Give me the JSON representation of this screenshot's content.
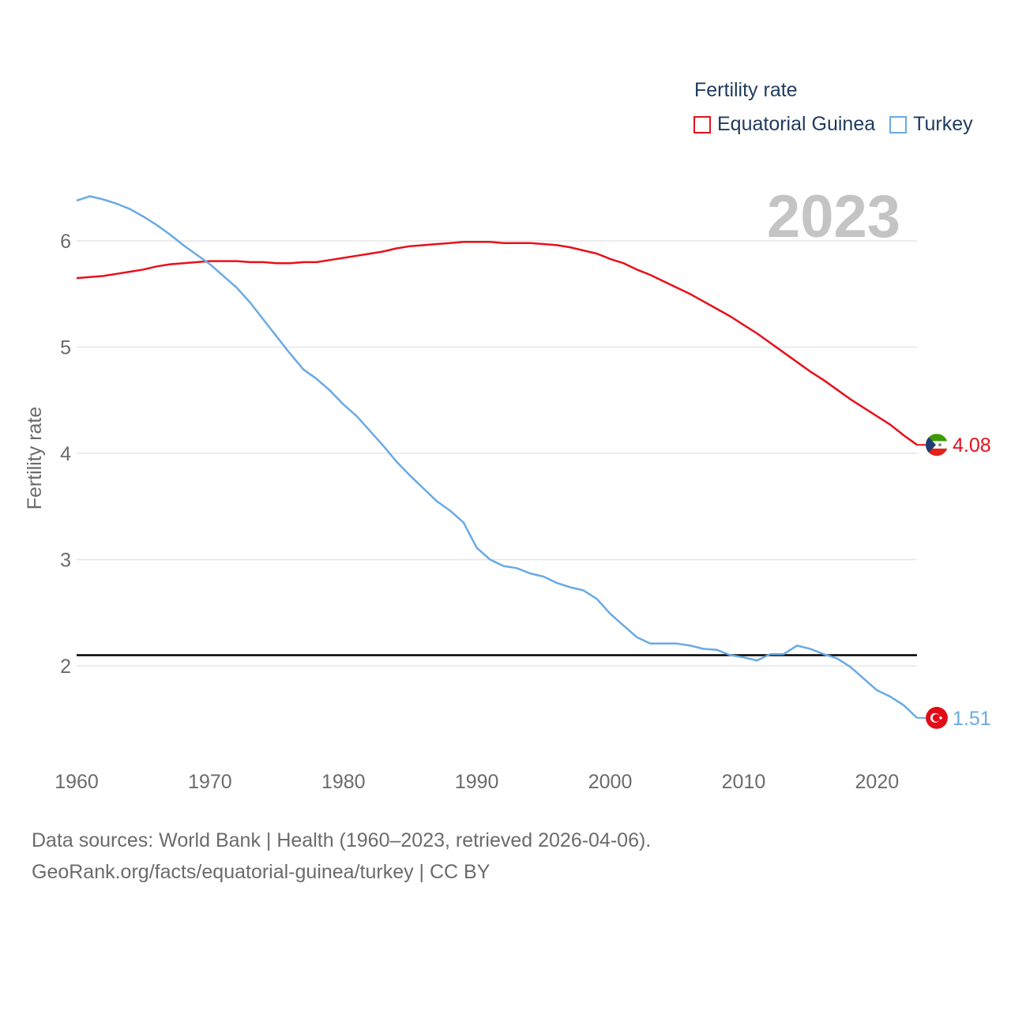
{
  "legend": {
    "title": "Fertility rate",
    "items": [
      {
        "label": "Equatorial Guinea",
        "color": "#e8101b"
      },
      {
        "label": "Turkey",
        "color": "#6aaae4"
      }
    ]
  },
  "footer": {
    "line1": "Data sources: World Bank | Health (1960–2023, retrieved 2026-04-06).",
    "line2": "GeoRank.org/facts/equatorial-guinea/turkey | CC BY"
  },
  "chart_data": {
    "type": "line",
    "title": "Fertility rate",
    "year_label": "2023",
    "xlabel": "",
    "ylabel": "Fertility rate",
    "xlim": [
      1960,
      2023
    ],
    "ylim": [
      1.0,
      6.7
    ],
    "x_ticks": [
      1960,
      1970,
      1980,
      1990,
      2000,
      2010,
      2020
    ],
    "y_ticks": [
      2,
      3,
      4,
      5,
      6
    ],
    "grid": true,
    "reference_line": {
      "y": 2.1,
      "color": "#000000"
    },
    "x": [
      1960,
      1961,
      1962,
      1963,
      1964,
      1965,
      1966,
      1967,
      1968,
      1969,
      1970,
      1971,
      1972,
      1973,
      1974,
      1975,
      1976,
      1977,
      1978,
      1979,
      1980,
      1981,
      1982,
      1983,
      1984,
      1985,
      1986,
      1987,
      1988,
      1989,
      1990,
      1991,
      1992,
      1993,
      1994,
      1995,
      1996,
      1997,
      1998,
      1999,
      2000,
      2001,
      2002,
      2003,
      2004,
      2005,
      2006,
      2007,
      2008,
      2009,
      2010,
      2011,
      2012,
      2013,
      2014,
      2015,
      2016,
      2017,
      2018,
      2019,
      2020,
      2021,
      2022,
      2023
    ],
    "series": [
      {
        "name": "Equatorial Guinea",
        "color": "#e8101b",
        "end_label": "4.08",
        "values": [
          5.65,
          5.66,
          5.67,
          5.69,
          5.71,
          5.73,
          5.76,
          5.78,
          5.79,
          5.8,
          5.81,
          5.81,
          5.81,
          5.8,
          5.8,
          5.79,
          5.79,
          5.8,
          5.8,
          5.82,
          5.84,
          5.86,
          5.88,
          5.9,
          5.93,
          5.95,
          5.96,
          5.97,
          5.98,
          5.99,
          5.99,
          5.99,
          5.98,
          5.98,
          5.98,
          5.97,
          5.96,
          5.94,
          5.91,
          5.88,
          5.83,
          5.79,
          5.73,
          5.68,
          5.62,
          5.56,
          5.5,
          5.43,
          5.36,
          5.29,
          5.21,
          5.13,
          5.04,
          4.95,
          4.86,
          4.77,
          4.69,
          4.6,
          4.51,
          4.43,
          4.35,
          4.27,
          4.17,
          4.08
        ]
      },
      {
        "name": "Turkey",
        "color": "#6aaae4",
        "end_label": "1.51",
        "values": [
          6.38,
          6.42,
          6.39,
          6.35,
          6.3,
          6.23,
          6.15,
          6.06,
          5.96,
          5.87,
          5.78,
          5.67,
          5.56,
          5.42,
          5.26,
          5.1,
          4.94,
          4.79,
          4.7,
          4.59,
          4.46,
          4.35,
          4.21,
          4.07,
          3.92,
          3.79,
          3.67,
          3.55,
          3.46,
          3.35,
          3.11,
          3.0,
          2.94,
          2.92,
          2.87,
          2.84,
          2.78,
          2.74,
          2.71,
          2.63,
          2.49,
          2.38,
          2.27,
          2.21,
          2.21,
          2.21,
          2.19,
          2.16,
          2.15,
          2.1,
          2.08,
          2.05,
          2.11,
          2.11,
          2.19,
          2.16,
          2.11,
          2.07,
          1.99,
          1.88,
          1.77,
          1.71,
          1.63,
          1.51
        ]
      }
    ]
  }
}
